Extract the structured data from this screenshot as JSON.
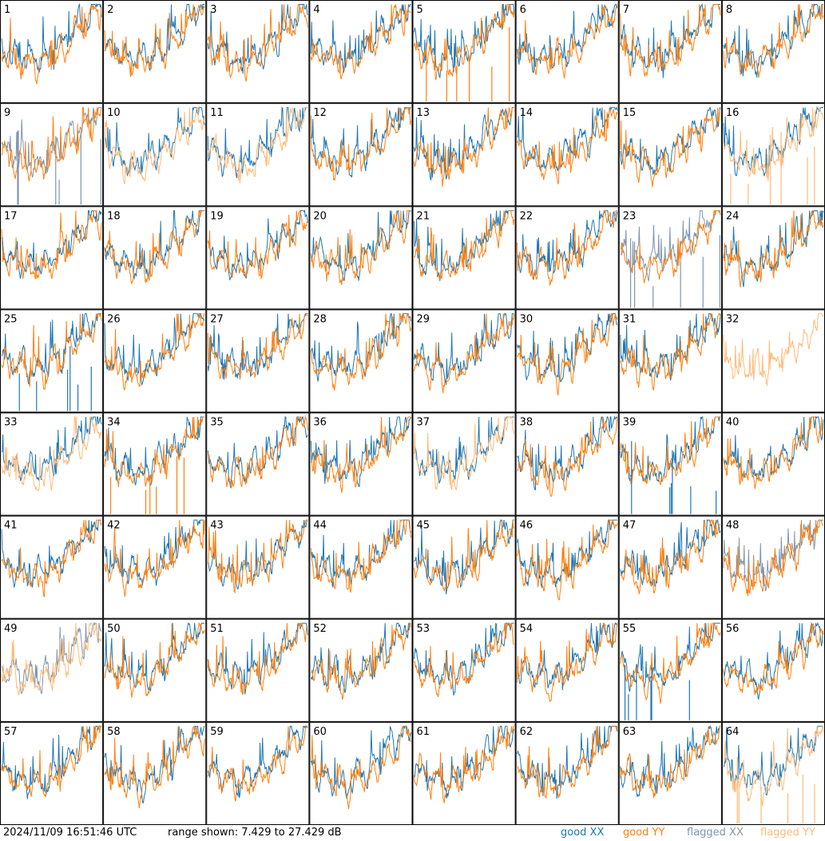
{
  "chart_data": {
    "type": "line",
    "panels": [
      {
        "label": "1",
        "xx": "good",
        "yy": "good",
        "spikes": ""
      },
      {
        "label": "2",
        "xx": "good",
        "yy": "good",
        "spikes": ""
      },
      {
        "label": "3",
        "xx": "good",
        "yy": "good",
        "spikes": ""
      },
      {
        "label": "4",
        "xx": "good",
        "yy": "good",
        "spikes": ""
      },
      {
        "label": "5",
        "xx": "good",
        "yy": "good",
        "spikes": "yy"
      },
      {
        "label": "6",
        "xx": "good",
        "yy": "good",
        "spikes": ""
      },
      {
        "label": "7",
        "xx": "good",
        "yy": "good",
        "spikes": ""
      },
      {
        "label": "8",
        "xx": "good",
        "yy": "good",
        "spikes": ""
      },
      {
        "label": "9",
        "xx": "flagged",
        "yy": "good",
        "spikes": "xx"
      },
      {
        "label": "10",
        "xx": "good",
        "yy": "flagged",
        "spikes": ""
      },
      {
        "label": "11",
        "xx": "good",
        "yy": "flagged",
        "spikes": ""
      },
      {
        "label": "12",
        "xx": "good",
        "yy": "good",
        "spikes": ""
      },
      {
        "label": "13",
        "xx": "good",
        "yy": "good",
        "spikes": ""
      },
      {
        "label": "14",
        "xx": "good",
        "yy": "good",
        "spikes": ""
      },
      {
        "label": "15",
        "xx": "good",
        "yy": "good",
        "spikes": ""
      },
      {
        "label": "16",
        "xx": "good",
        "yy": "flagged",
        "spikes": "yy"
      },
      {
        "label": "17",
        "xx": "good",
        "yy": "good",
        "spikes": ""
      },
      {
        "label": "18",
        "xx": "good",
        "yy": "good",
        "spikes": ""
      },
      {
        "label": "19",
        "xx": "good",
        "yy": "good",
        "spikes": ""
      },
      {
        "label": "20",
        "xx": "good",
        "yy": "good",
        "spikes": ""
      },
      {
        "label": "21",
        "xx": "good",
        "yy": "good",
        "spikes": ""
      },
      {
        "label": "22",
        "xx": "good",
        "yy": "good",
        "spikes": ""
      },
      {
        "label": "23",
        "xx": "flagged",
        "yy": "good",
        "spikes": "xx"
      },
      {
        "label": "24",
        "xx": "good",
        "yy": "good",
        "spikes": ""
      },
      {
        "label": "25",
        "xx": "good",
        "yy": "good",
        "spikes": "xx"
      },
      {
        "label": "26",
        "xx": "good",
        "yy": "good",
        "spikes": ""
      },
      {
        "label": "27",
        "xx": "good",
        "yy": "good",
        "spikes": ""
      },
      {
        "label": "28",
        "xx": "good",
        "yy": "good",
        "spikes": ""
      },
      {
        "label": "29",
        "xx": "good",
        "yy": "good",
        "spikes": ""
      },
      {
        "label": "30",
        "xx": "good",
        "yy": "good",
        "spikes": ""
      },
      {
        "label": "31",
        "xx": "good",
        "yy": "good",
        "spikes": ""
      },
      {
        "label": "32",
        "xx": "none",
        "yy": "flagged",
        "spikes": ""
      },
      {
        "label": "33",
        "xx": "good",
        "yy": "flagged",
        "spikes": ""
      },
      {
        "label": "34",
        "xx": "good",
        "yy": "good",
        "spikes": "yy"
      },
      {
        "label": "35",
        "xx": "good",
        "yy": "good",
        "spikes": ""
      },
      {
        "label": "36",
        "xx": "good",
        "yy": "good",
        "spikes": ""
      },
      {
        "label": "37",
        "xx": "good",
        "yy": "flagged",
        "spikes": ""
      },
      {
        "label": "38",
        "xx": "good",
        "yy": "good",
        "spikes": ""
      },
      {
        "label": "39",
        "xx": "good",
        "yy": "good",
        "spikes": "xx"
      },
      {
        "label": "40",
        "xx": "good",
        "yy": "good",
        "spikes": ""
      },
      {
        "label": "41",
        "xx": "good",
        "yy": "good",
        "spikes": ""
      },
      {
        "label": "42",
        "xx": "good",
        "yy": "good",
        "spikes": ""
      },
      {
        "label": "43",
        "xx": "good",
        "yy": "good",
        "spikes": ""
      },
      {
        "label": "44",
        "xx": "good",
        "yy": "good",
        "spikes": ""
      },
      {
        "label": "45",
        "xx": "good",
        "yy": "good",
        "spikes": ""
      },
      {
        "label": "46",
        "xx": "good",
        "yy": "good",
        "spikes": ""
      },
      {
        "label": "47",
        "xx": "good",
        "yy": "good",
        "spikes": ""
      },
      {
        "label": "48",
        "xx": "flagged",
        "yy": "good",
        "spikes": ""
      },
      {
        "label": "49",
        "xx": "flagged",
        "yy": "flagged",
        "spikes": ""
      },
      {
        "label": "50",
        "xx": "good",
        "yy": "good",
        "spikes": ""
      },
      {
        "label": "51",
        "xx": "good",
        "yy": "good",
        "spikes": ""
      },
      {
        "label": "52",
        "xx": "good",
        "yy": "good",
        "spikes": ""
      },
      {
        "label": "53",
        "xx": "good",
        "yy": "good",
        "spikes": ""
      },
      {
        "label": "54",
        "xx": "good",
        "yy": "good",
        "spikes": ""
      },
      {
        "label": "55",
        "xx": "good",
        "yy": "good",
        "spikes": "xx"
      },
      {
        "label": "56",
        "xx": "good",
        "yy": "good",
        "spikes": ""
      },
      {
        "label": "57",
        "xx": "good",
        "yy": "good",
        "spikes": ""
      },
      {
        "label": "58",
        "xx": "good",
        "yy": "good",
        "spikes": ""
      },
      {
        "label": "59",
        "xx": "good",
        "yy": "good",
        "spikes": ""
      },
      {
        "label": "60",
        "xx": "good",
        "yy": "good",
        "spikes": ""
      },
      {
        "label": "61",
        "xx": "good",
        "yy": "good",
        "spikes": ""
      },
      {
        "label": "62",
        "xx": "good",
        "yy": "good",
        "spikes": ""
      },
      {
        "label": "63",
        "xx": "good",
        "yy": "good",
        "spikes": ""
      },
      {
        "label": "64",
        "xx": "good",
        "yy": "flagged",
        "spikes": "yy"
      }
    ],
    "legend": [
      {
        "name": "good XX",
        "color": "#1f77b4"
      },
      {
        "name": "good YY",
        "color": "#ff7f0e"
      },
      {
        "name": "flagged XX",
        "color": "#7f96ad"
      },
      {
        "name": "flagged YY",
        "color": "#ffbb78"
      }
    ],
    "range_min_db": 7.429,
    "range_max_db": 27.429
  },
  "footer": {
    "timestamp": "2024/11/09 16:51:46 UTC",
    "range_text": "range shown: 7.429 to 27.429 dB",
    "legend_good_xx": "good XX",
    "legend_good_yy": "good YY",
    "legend_flagged_xx": "flagged XX",
    "legend_flagged_yy": "flagged YY"
  }
}
